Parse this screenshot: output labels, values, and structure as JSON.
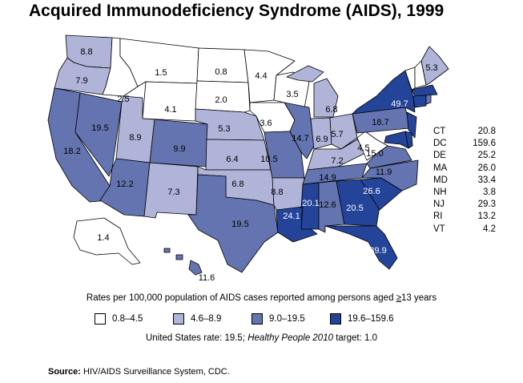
{
  "title": "Acquired Immunodeficiency Syndrome (AIDS), 1999",
  "colors": {
    "c1": "#ffffff",
    "c2": "#b0b4d8",
    "c3": "#6474b0",
    "c4": "#24449a"
  },
  "states": {
    "WA": {
      "value": "8.8",
      "cls": "c2"
    },
    "OR": {
      "value": "7.9",
      "cls": "c2"
    },
    "CA": {
      "value": "18.2",
      "cls": "c3"
    },
    "NV": {
      "value": "19.5",
      "cls": "c3"
    },
    "ID": {
      "value": "2.5",
      "cls": "c1"
    },
    "MT": {
      "value": "1.5",
      "cls": "c1"
    },
    "WY": {
      "value": "4.1",
      "cls": "c1"
    },
    "UT": {
      "value": "8.9",
      "cls": "c2"
    },
    "CO": {
      "value": "9.9",
      "cls": "c3"
    },
    "AZ": {
      "value": "12.2",
      "cls": "c3"
    },
    "NM": {
      "value": "7.3",
      "cls": "c2"
    },
    "ND": {
      "value": "0.8",
      "cls": "c1"
    },
    "SD": {
      "value": "2.0",
      "cls": "c1"
    },
    "NE": {
      "value": "5.3",
      "cls": "c2"
    },
    "KS": {
      "value": "6.4",
      "cls": "c2"
    },
    "OK": {
      "value": "6.8",
      "cls": "c2"
    },
    "TX": {
      "value": "19.5",
      "cls": "c3"
    },
    "MN": {
      "value": "4.4",
      "cls": "c1"
    },
    "IA": {
      "value": "3.6",
      "cls": "c1"
    },
    "MO": {
      "value": "10.5",
      "cls": "c3"
    },
    "AR": {
      "value": "8.8",
      "cls": "c2"
    },
    "LA": {
      "value": "24.1",
      "cls": "c4"
    },
    "WI": {
      "value": "3.5",
      "cls": "c1"
    },
    "IL": {
      "value": "14.7",
      "cls": "c3"
    },
    "MI": {
      "value": "6.8",
      "cls": "c2"
    },
    "IN": {
      "value": "6.9",
      "cls": "c2"
    },
    "OH": {
      "value": "5.7",
      "cls": "c2"
    },
    "KY": {
      "value": "7.2",
      "cls": "c2"
    },
    "TN": {
      "value": "14.9",
      "cls": "c3"
    },
    "MS": {
      "value": "20.1",
      "cls": "c4"
    },
    "AL": {
      "value": "12.6",
      "cls": "c3"
    },
    "GA": {
      "value": "20.5",
      "cls": "c4"
    },
    "FL": {
      "value": "39.9",
      "cls": "c4"
    },
    "SC": {
      "value": "26.6",
      "cls": "c4"
    },
    "NC": {
      "value": "11.9",
      "cls": "c3"
    },
    "VA": {
      "value": "15.0",
      "cls": "c3"
    },
    "WV": {
      "value": "4.5",
      "cls": "c1"
    },
    "PA": {
      "value": "18.7",
      "cls": "c3"
    },
    "NY": {
      "value": "49.7",
      "cls": "c4"
    },
    "ME": {
      "value": "5.3",
      "cls": "c2"
    },
    "VT": {
      "value": "4.2",
      "cls": "c1"
    },
    "NH": {
      "value": "3.8",
      "cls": "c1"
    },
    "MA": {
      "value": "26.0",
      "cls": "c4"
    },
    "CT": {
      "value": "20.8",
      "cls": "c4"
    },
    "RI": {
      "value": "13.2",
      "cls": "c3"
    },
    "NJ": {
      "value": "29.3",
      "cls": "c4"
    },
    "DE": {
      "value": "25.2",
      "cls": "c4"
    },
    "MD": {
      "value": "33.4",
      "cls": "c4"
    },
    "DC": {
      "value": "159.6",
      "cls": "c4"
    },
    "AK": {
      "value": "1.4",
      "cls": "c1"
    },
    "HI": {
      "value": "11.6",
      "cls": "c3"
    }
  },
  "side_list": [
    {
      "abbr": "CT",
      "value": "20.8"
    },
    {
      "abbr": "DC",
      "value": "159.6"
    },
    {
      "abbr": "DE",
      "value": "25.2"
    },
    {
      "abbr": "MA",
      "value": "26.0"
    },
    {
      "abbr": "MD",
      "value": "33.4"
    },
    {
      "abbr": "NH",
      "value": "3.8"
    },
    {
      "abbr": "NJ",
      "value": "29.3"
    },
    {
      "abbr": "RI",
      "value": "13.2"
    },
    {
      "abbr": "VT",
      "value": "4.2"
    }
  ],
  "caption_prefix": "Rates per 100,000 population of AIDS cases reported among persons aged ",
  "caption_ge": "≥",
  "caption_suffix": "13 years",
  "legend": [
    {
      "label": "0.8–4.5",
      "color": "#ffffff"
    },
    {
      "label": "4.6–8.9",
      "color": "#b0b4d8"
    },
    {
      "label": "9.0–19.5",
      "color": "#6474b0"
    },
    {
      "label": "19.6–159.6",
      "color": "#24449a"
    }
  ],
  "us_rate_text": "United States rate: 19.5; ",
  "hp_text": "Healthy People 2010",
  "target_text": " target: 1.0",
  "source_label": "Source:",
  "source_text": " HIV/AIDS Surveillance System, CDC."
}
